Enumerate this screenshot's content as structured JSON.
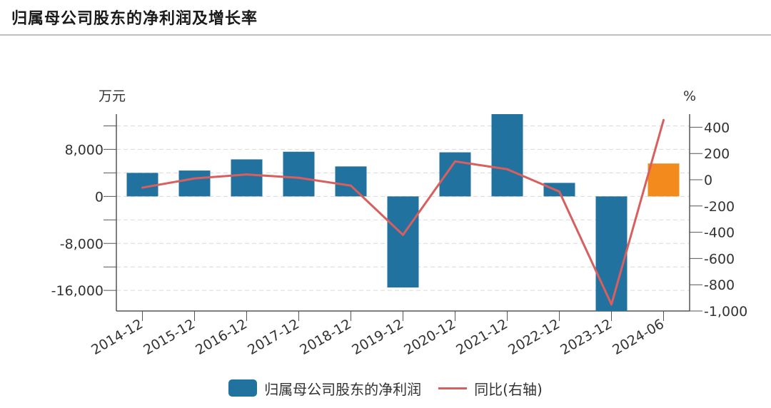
{
  "header": {
    "title": "归属母公司股东的净利润及增长率"
  },
  "chart_data": {
    "type": "bar",
    "categories": [
      "2014-12",
      "2015-12",
      "2016-12",
      "2017-12",
      "2018-12",
      "2019-12",
      "2020-12",
      "2021-12",
      "2022-12",
      "2023-12",
      "2024-06"
    ],
    "series": [
      {
        "name": "归属母公司股东的净利润",
        "type": "bar",
        "axis": "left",
        "values": [
          4000,
          4400,
          6300,
          7600,
          5100,
          -15500,
          7500,
          14100,
          2300,
          -19500,
          5600
        ],
        "color": "#22729f",
        "highlight_color": "#f28a1e",
        "highlight_index": 10
      },
      {
        "name": "同比(右轴)",
        "type": "line",
        "axis": "right",
        "values": [
          -60,
          10,
          40,
          15,
          -45,
          -420,
          140,
          80,
          -90,
          -950,
          455
        ],
        "color": "#d95f5f"
      }
    ],
    "left_axis": {
      "unit": "万元",
      "min": -19500,
      "max": 14000,
      "ticks": [
        8000,
        0,
        -8000,
        -16000
      ],
      "tick_labels": [
        "8,000",
        "0",
        "-8,000",
        "-16,000"
      ]
    },
    "right_axis": {
      "unit": "%",
      "min": -1000,
      "max": 500,
      "ticks": [
        400,
        200,
        0,
        -200,
        -400,
        -600,
        -800,
        -1000
      ],
      "tick_labels": [
        "400",
        "200",
        "0",
        "-200",
        "-400",
        "-600",
        "-800",
        "-1,000"
      ]
    },
    "grid": true,
    "legend_position": "bottom"
  }
}
